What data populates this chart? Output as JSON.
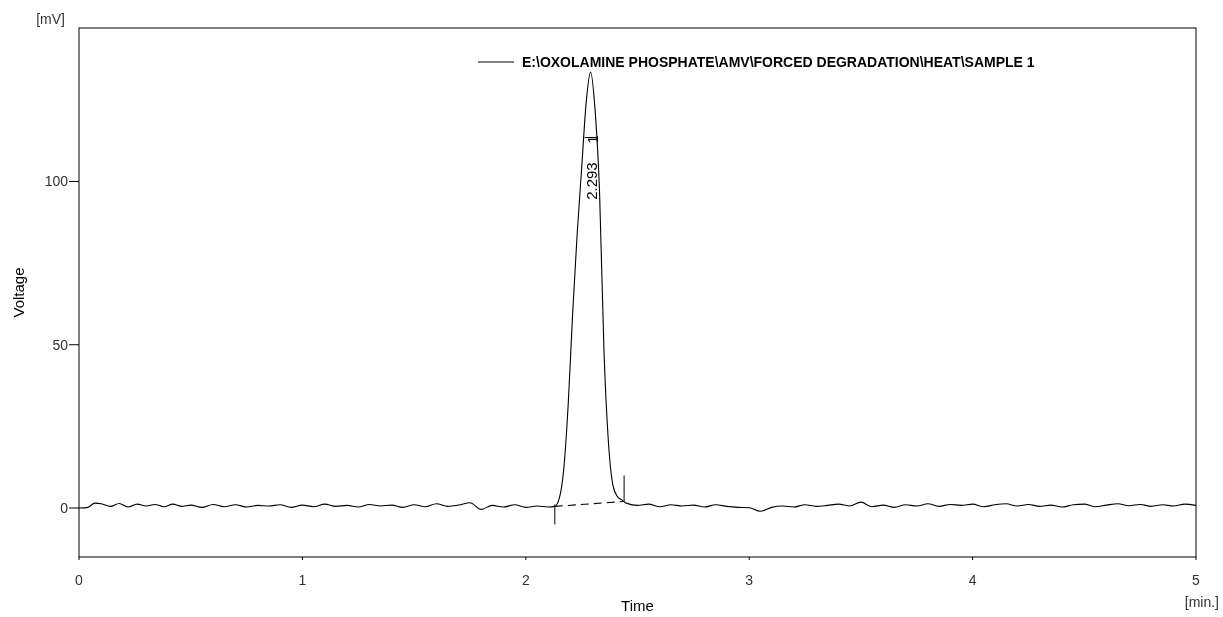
{
  "chart_data": {
    "type": "line",
    "xlabel": "Time",
    "ylabel": "Voltage",
    "xlim": [
      0,
      5
    ],
    "ylim": [
      -15,
      147
    ],
    "xticks": [
      0,
      1,
      2,
      3,
      4,
      5
    ],
    "yticks": [
      0,
      50,
      100
    ],
    "grid": false,
    "legend": "top right",
    "marker": "none",
    "annotations": [
      "[mV]",
      "[min.]",
      "2.293",
      "1"
    ],
    "series": [
      {
        "name": "E:\\OXOLAMINE PHOSPHATE\\AMV\\FORCED DEGRADATION\\HEAT\\SAMPLE 1",
        "color": "#000000",
        "line_style": "solid",
        "x": [
          0,
          0.04,
          0.07,
          0.1,
          0.14,
          0.18,
          0.22,
          0.26,
          0.3,
          0.34,
          0.38,
          0.42,
          0.46,
          0.5,
          0.55,
          0.6,
          0.65,
          0.7,
          0.75,
          0.8,
          0.85,
          0.9,
          0.95,
          1.0,
          1.05,
          1.1,
          1.15,
          1.2,
          1.25,
          1.3,
          1.35,
          1.4,
          1.45,
          1.5,
          1.55,
          1.6,
          1.65,
          1.7,
          1.75,
          1.8,
          1.85,
          1.9,
          1.95,
          2.0,
          2.05,
          2.1,
          2.13,
          2.15,
          2.17,
          2.19,
          2.21,
          2.23,
          2.25,
          2.27,
          2.29,
          2.31,
          2.33,
          2.35,
          2.37,
          2.39,
          2.41,
          2.43,
          2.45,
          2.5,
          2.55,
          2.6,
          2.65,
          2.7,
          2.75,
          2.8,
          2.85,
          2.9,
          2.95,
          3.0,
          3.05,
          3.1,
          3.15,
          3.2,
          3.25,
          3.3,
          3.35,
          3.4,
          3.45,
          3.5,
          3.55,
          3.6,
          3.65,
          3.7,
          3.75,
          3.8,
          3.85,
          3.9,
          3.95,
          4.0,
          4.05,
          4.1,
          4.15,
          4.2,
          4.25,
          4.3,
          4.35,
          4.4,
          4.45,
          4.5,
          4.55,
          4.6,
          4.65,
          4.7,
          4.75,
          4.8,
          4.85,
          4.9,
          4.95,
          5.0
        ],
        "values": [
          0,
          0.2,
          1.5,
          1.3,
          0.5,
          1.4,
          0.3,
          1.2,
          0.6,
          1.1,
          0.4,
          1.2,
          0.5,
          0.9,
          0.2,
          1.1,
          0.4,
          1.0,
          0.3,
          0.8,
          0.6,
          1.0,
          0.2,
          0.9,
          0.4,
          1.2,
          0.5,
          0.8,
          0.3,
          1.1,
          0.6,
          0.9,
          0.2,
          1.0,
          0.4,
          1.3,
          0.5,
          0.9,
          1.6,
          -0.4,
          0.8,
          0.3,
          1.0,
          0.2,
          0.6,
          0.3,
          0.5,
          3,
          12,
          32,
          60,
          84,
          104,
          124,
          133.5,
          122,
          97,
          48,
          20,
          7,
          3.5,
          2.5,
          1.5,
          0.8,
          1.2,
          0.4,
          1.0,
          0.6,
          0.9,
          0.3,
          1.0,
          0.5,
          0.2,
          0.1,
          -1.0,
          0.2,
          0.6,
          0.3,
          1.0,
          0.5,
          0.8,
          1.2,
          0.6,
          1.8,
          0.4,
          0.9,
          0.2,
          1.0,
          0.6,
          1.3,
          0.5,
          1.1,
          0.8,
          1.2,
          0.4,
          1.0,
          1.3,
          0.6,
          1.1,
          0.5,
          0.9,
          0.3,
          1.0,
          1.2,
          0.4,
          0.9,
          1.3,
          0.7,
          1.1,
          0.5,
          1.0,
          0.6,
          1.2,
          0.8
        ]
      },
      {
        "color": "#000000",
        "line_style": "dashed",
        "x": [
          2.13,
          2.44
        ],
        "values": [
          0.5,
          2
        ]
      }
    ]
  }
}
